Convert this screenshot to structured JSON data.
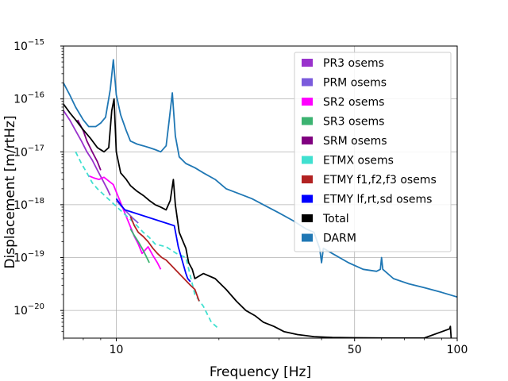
{
  "chart_data": {
    "type": "line",
    "title": "",
    "xlabel": "Frequency [Hz]",
    "ylabel": "Displacement [m/rtHz]",
    "xscale": "log",
    "yscale": "log",
    "xlim": [
      7,
      100
    ],
    "ylim": [
      3e-21,
      1e-15
    ],
    "grid": true,
    "legend_position": "top-right",
    "x_ticks": [
      {
        "value": 10,
        "label": "10"
      },
      {
        "value": 50,
        "label": "50"
      },
      {
        "value": 100,
        "label": "100"
      }
    ],
    "y_ticks": [
      {
        "value": 1e-20,
        "base": "10",
        "exp": "−20"
      },
      {
        "value": 1e-19,
        "base": "10",
        "exp": "−19"
      },
      {
        "value": 1e-18,
        "base": "10",
        "exp": "−18"
      },
      {
        "value": 1e-17,
        "base": "10",
        "exp": "−17"
      },
      {
        "value": 1e-16,
        "base": "10",
        "exp": "−16"
      },
      {
        "value": 1e-15,
        "base": "10",
        "exp": "−15"
      }
    ],
    "series": [
      {
        "name": "PR3 osems",
        "color": "#9932cc",
        "dashed": false,
        "points": [
          [
            7.0,
            6e-17
          ],
          [
            7.3,
            4e-17
          ],
          [
            7.6,
            2.5e-17
          ],
          [
            7.9,
            1.6e-17
          ],
          [
            8.2,
            1e-17
          ],
          [
            8.5,
            7e-18
          ],
          [
            8.8,
            4.5e-18
          ],
          [
            9.1,
            3e-18
          ],
          [
            9.4,
            2e-18
          ],
          [
            9.6,
            1.5e-18
          ]
        ]
      },
      {
        "name": "PRM osems",
        "color": "#7b5bdc",
        "dashed": false,
        "points": [
          [
            10.0,
            1.2e-18
          ],
          [
            10.4,
            9e-19
          ],
          [
            10.8,
            7e-19
          ],
          [
            11.2,
            5.5e-19
          ],
          [
            11.6,
            4.5e-19
          ]
        ]
      },
      {
        "name": "SR2 osems",
        "color": "#ff00ff",
        "dashed": false,
        "points": [
          [
            8.3,
            3.5e-18
          ],
          [
            8.6,
            3.2e-18
          ],
          [
            8.9,
            3e-18
          ],
          [
            9.2,
            3.3e-18
          ],
          [
            9.5,
            2.8e-18
          ],
          [
            9.8,
            2.4e-18
          ],
          [
            11.3,
            2.5e-19
          ],
          [
            11.6,
            1.8e-19
          ],
          [
            11.9,
            1.2e-19
          ],
          [
            12.4,
            1.6e-19
          ],
          [
            12.8,
            1.1e-19
          ],
          [
            13.2,
            8e-20
          ],
          [
            13.5,
            6e-20
          ]
        ]
      },
      {
        "name": "SR3 osems",
        "color": "#3cb371",
        "dashed": false,
        "points": [
          [
            11.0,
            3.5e-19
          ],
          [
            11.3,
            2.6e-19
          ],
          [
            11.6,
            2e-19
          ],
          [
            11.9,
            1.5e-19
          ],
          [
            12.2,
            1.1e-19
          ],
          [
            12.5,
            8e-20
          ]
        ]
      },
      {
        "name": "SRM osems",
        "color": "#800080",
        "dashed": false,
        "points": [
          [
            7.7,
            4e-17
          ],
          [
            8.0,
            2.5e-17
          ],
          [
            8.2,
            1.6e-17
          ],
          [
            8.5,
            1e-17
          ],
          [
            8.8,
            6.5e-18
          ],
          [
            9.0,
            4.5e-18
          ]
        ]
      },
      {
        "name": "ETMX osems",
        "color": "#40e0d0",
        "dashed": true,
        "points": [
          [
            7.6,
            1e-17
          ],
          [
            7.9,
            6e-18
          ],
          [
            8.2,
            4e-18
          ],
          [
            8.5,
            2.6e-18
          ],
          [
            8.8,
            2e-18
          ],
          [
            11.5,
            4e-19
          ],
          [
            12.0,
            3e-19
          ],
          [
            12.5,
            2.4e-19
          ],
          [
            13.0,
            1.8e-19
          ],
          [
            14.0,
            1.6e-19
          ],
          [
            15.0,
            1.2e-19
          ],
          [
            16.0,
            1e-19
          ],
          [
            17.0,
            2e-20
          ],
          [
            18.0,
            1.2e-20
          ],
          [
            19.0,
            6e-21
          ],
          [
            20.0,
            4.5e-21
          ]
        ]
      },
      {
        "name": "ETMY f1,f2,f3 osems",
        "color": "#b22222",
        "dashed": false,
        "points": [
          [
            11.0,
            6e-19
          ],
          [
            11.3,
            4e-19
          ],
          [
            11.6,
            3e-19
          ],
          [
            12.0,
            2.5e-19
          ],
          [
            12.4,
            2e-19
          ],
          [
            12.8,
            1.5e-19
          ],
          [
            13.2,
            1.2e-19
          ],
          [
            13.6,
            1e-19
          ],
          [
            14.0,
            9e-20
          ],
          [
            16.5,
            3e-20
          ],
          [
            17.0,
            2.5e-20
          ],
          [
            17.5,
            1.5e-20
          ]
        ]
      },
      {
        "name": "ETMY lf,rt,sd osems",
        "color": "#0000ff",
        "dashed": false,
        "points": [
          [
            10.0,
            1.3e-18
          ],
          [
            10.3,
            1e-18
          ],
          [
            10.6,
            8e-19
          ],
          [
            14.8,
            4e-19
          ],
          [
            15.0,
            2.5e-19
          ],
          [
            15.2,
            1.6e-19
          ],
          [
            16.0,
            5e-20
          ],
          [
            16.2,
            4e-20
          ],
          [
            16.5,
            3.5e-20
          ]
        ]
      },
      {
        "name": "Total",
        "color": "#000000",
        "dashed": false,
        "points": [
          [
            7.0,
            8e-17
          ],
          [
            7.3,
            5.5e-17
          ],
          [
            7.6,
            4e-17
          ],
          [
            8.0,
            2.6e-17
          ],
          [
            8.4,
            1.8e-17
          ],
          [
            8.8,
            1.2e-17
          ],
          [
            9.2,
            1e-17
          ],
          [
            9.5,
            1.2e-17
          ],
          [
            9.7,
            6e-17
          ],
          [
            9.85,
            1e-16
          ],
          [
            10.0,
            1e-17
          ],
          [
            10.3,
            4e-18
          ],
          [
            10.7,
            3e-18
          ],
          [
            11.0,
            2.3e-18
          ],
          [
            11.5,
            1.8e-18
          ],
          [
            12.0,
            1.5e-18
          ],
          [
            12.5,
            1.2e-18
          ],
          [
            13.0,
            1e-18
          ],
          [
            13.5,
            9e-19
          ],
          [
            14.0,
            8e-19
          ],
          [
            14.4,
            1.2e-18
          ],
          [
            14.7,
            3e-18
          ],
          [
            14.9,
            1e-18
          ],
          [
            15.3,
            3e-19
          ],
          [
            15.7,
            2e-19
          ],
          [
            16.0,
            1.5e-19
          ],
          [
            16.3,
            8e-20
          ],
          [
            16.7,
            6e-20
          ],
          [
            17.0,
            4e-20
          ],
          [
            18.0,
            5e-20
          ],
          [
            19.5,
            4e-20
          ],
          [
            21.0,
            2.5e-20
          ],
          [
            22.5,
            1.5e-20
          ],
          [
            24.0,
            1e-20
          ],
          [
            25.5,
            8e-21
          ],
          [
            27.0,
            6e-21
          ],
          [
            29.0,
            5e-21
          ],
          [
            31.0,
            4e-21
          ],
          [
            34.0,
            3.5e-21
          ],
          [
            38.0,
            3.2e-21
          ],
          [
            43.0,
            3.1e-21
          ],
          [
            50.0,
            3.05e-21
          ],
          [
            60.0,
            3.02e-21
          ],
          [
            80.0,
            3.01e-21
          ],
          [
            95.0,
            4.5e-21
          ],
          [
            95.5,
            5e-21
          ],
          [
            96.0,
            3.01e-21
          ]
        ]
      },
      {
        "name": "DARM",
        "color": "#1f77b4",
        "dashed": false,
        "points": [
          [
            7.0,
            2e-16
          ],
          [
            7.3,
            1.2e-16
          ],
          [
            7.6,
            7e-17
          ],
          [
            8.0,
            4e-17
          ],
          [
            8.3,
            3e-17
          ],
          [
            8.7,
            3e-17
          ],
          [
            9.0,
            3.5e-17
          ],
          [
            9.3,
            4.5e-17
          ],
          [
            9.6,
            1.5e-16
          ],
          [
            9.8,
            5.5e-16
          ],
          [
            10.0,
            1.2e-16
          ],
          [
            10.3,
            5e-17
          ],
          [
            10.7,
            2.5e-17
          ],
          [
            11.0,
            1.6e-17
          ],
          [
            11.5,
            1.4e-17
          ],
          [
            12.0,
            1.3e-17
          ],
          [
            12.5,
            1.2e-17
          ],
          [
            13.0,
            1.1e-17
          ],
          [
            13.5,
            1e-17
          ],
          [
            14.0,
            1.3e-17
          ],
          [
            14.3,
            4e-17
          ],
          [
            14.6,
            1.3e-16
          ],
          [
            14.9,
            2e-17
          ],
          [
            15.3,
            8e-18
          ],
          [
            16.0,
            6e-18
          ],
          [
            17.0,
            5e-18
          ],
          [
            18.0,
            4e-18
          ],
          [
            19.5,
            3e-18
          ],
          [
            21.0,
            2e-18
          ],
          [
            23.0,
            1.6e-18
          ],
          [
            25.0,
            1.3e-18
          ],
          [
            27.0,
            1e-18
          ],
          [
            30.0,
            7e-19
          ],
          [
            33.0,
            5e-19
          ],
          [
            36.0,
            3.5e-19
          ],
          [
            38.0,
            3e-19
          ],
          [
            39.5,
            1.5e-19
          ],
          [
            40.0,
            8e-20
          ],
          [
            40.5,
            1.5e-19
          ],
          [
            43.0,
            1.2e-19
          ],
          [
            48.0,
            8e-20
          ],
          [
            53.0,
            6e-20
          ],
          [
            58.0,
            5.5e-20
          ],
          [
            59.5,
            6e-20
          ],
          [
            60.0,
            1e-19
          ],
          [
            60.5,
            6e-20
          ],
          [
            65.0,
            4e-20
          ],
          [
            72.0,
            3.2e-20
          ],
          [
            80.0,
            2.7e-20
          ],
          [
            90.0,
            2.2e-20
          ],
          [
            100.0,
            1.8e-20
          ]
        ]
      }
    ]
  }
}
